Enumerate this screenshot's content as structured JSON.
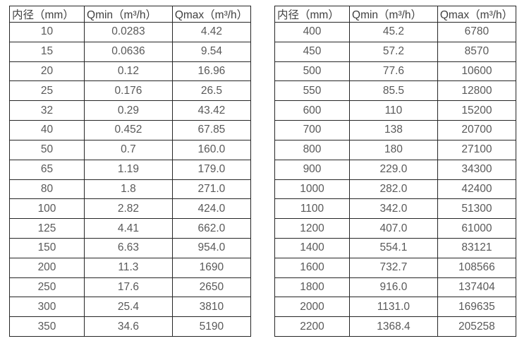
{
  "colors": {
    "background": "#ffffff",
    "border": "#262626",
    "header_text": "#404040",
    "cell_text": "#595959"
  },
  "tables": [
    {
      "name": "flow-table-left",
      "headers": [
        "内径（mm）",
        "Qmin（m³/h）",
        "Qmax（m³/h）"
      ],
      "rows": [
        [
          "10",
          "0.0283",
          "4.42"
        ],
        [
          "15",
          "0.0636",
          "9.54"
        ],
        [
          "20",
          "0.12",
          "16.96"
        ],
        [
          "25",
          "0.176",
          "26.5"
        ],
        [
          "32",
          "0.29",
          "43.42"
        ],
        [
          "40",
          "0.452",
          "67.85"
        ],
        [
          "50",
          "0.7",
          "160.0"
        ],
        [
          "65",
          "1.19",
          "179.0"
        ],
        [
          "80",
          "1.8",
          "271.0"
        ],
        [
          "100",
          "2.82",
          "424.0"
        ],
        [
          "125",
          "4.41",
          "662.0"
        ],
        [
          "150",
          "6.63",
          "954.0"
        ],
        [
          "200",
          "11.3",
          "1690"
        ],
        [
          "250",
          "17.6",
          "2650"
        ],
        [
          "300",
          "25.4",
          "3810"
        ],
        [
          "350",
          "34.6",
          "5190"
        ]
      ]
    },
    {
      "name": "flow-table-right",
      "headers": [
        "内径（mm）",
        "Qmin（m³/h）",
        "Qmax（m³/h）"
      ],
      "rows": [
        [
          "400",
          "45.2",
          "6780"
        ],
        [
          "450",
          "57.2",
          "8570"
        ],
        [
          "500",
          "77.6",
          "10600"
        ],
        [
          "550",
          "85.5",
          "12800"
        ],
        [
          "600",
          "110",
          "15200"
        ],
        [
          "700",
          "138",
          "20700"
        ],
        [
          "800",
          "180",
          "27100"
        ],
        [
          "900",
          "229.0",
          "34300"
        ],
        [
          "1000",
          "282.0",
          "42400"
        ],
        [
          "1100",
          "342.0",
          "51300"
        ],
        [
          "1200",
          "407.0",
          "61000"
        ],
        [
          "1400",
          "554.1",
          "83121"
        ],
        [
          "1600",
          "732.7",
          "108566"
        ],
        [
          "1800",
          "916.0",
          "137404"
        ],
        [
          "2000",
          "1131.0",
          "169635"
        ],
        [
          "2200",
          "1368.4",
          "205258"
        ]
      ]
    }
  ]
}
